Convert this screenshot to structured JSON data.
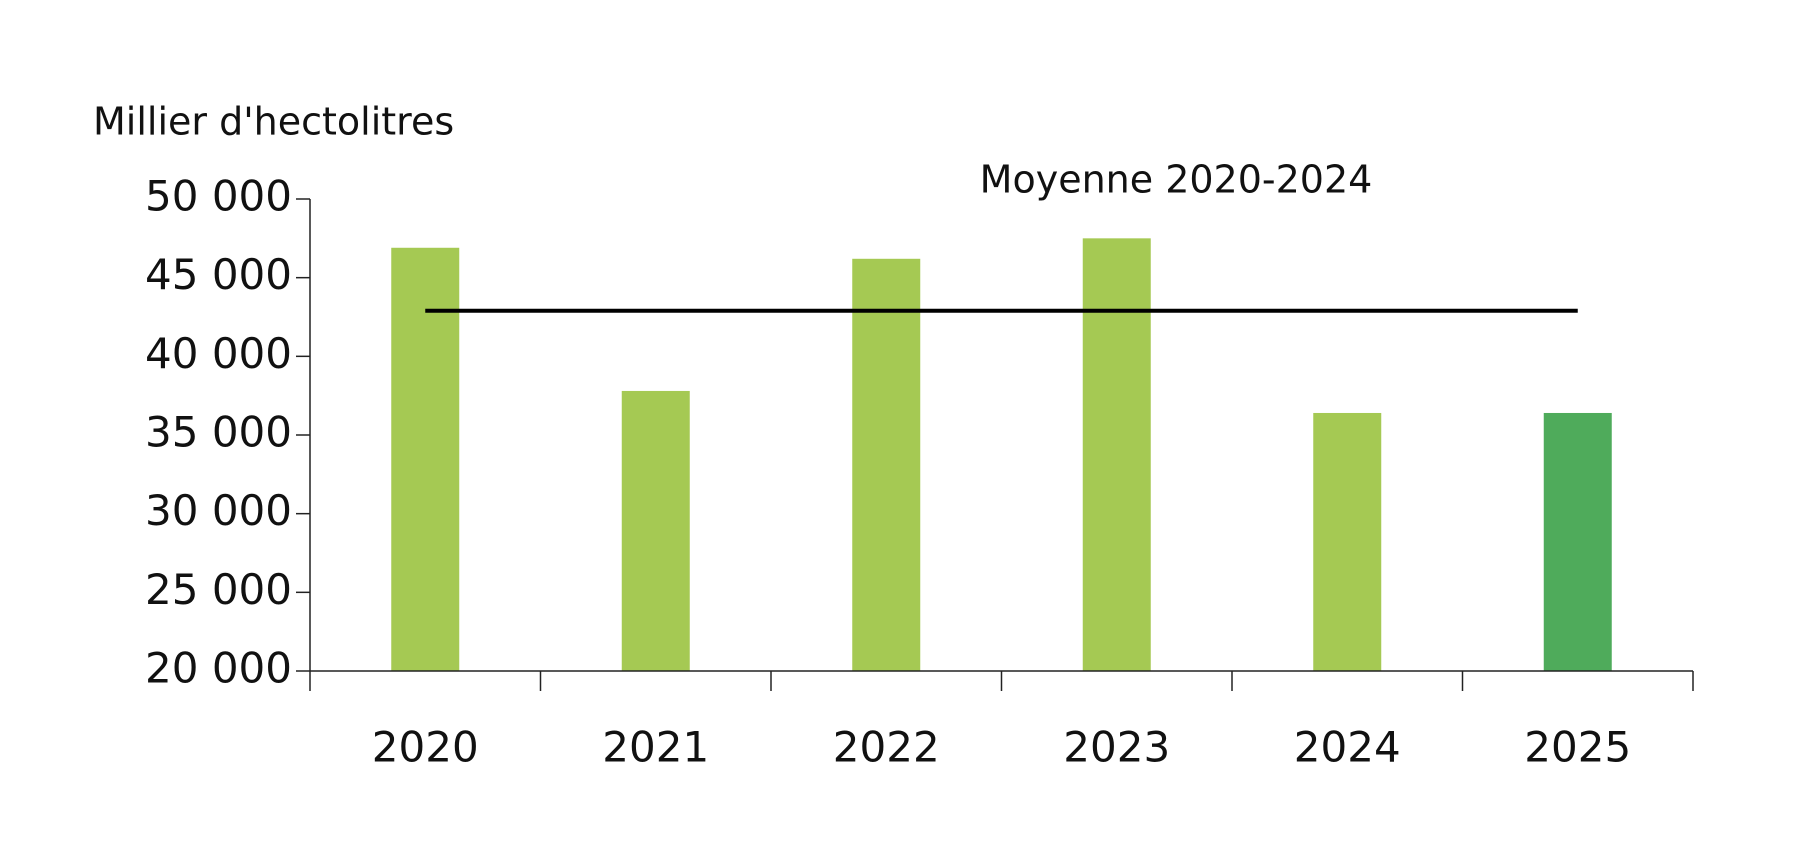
{
  "chart_data": {
    "type": "bar",
    "y_label": "Millier d'hectolitres",
    "categories": [
      "2020",
      "2021",
      "2022",
      "2023",
      "2024",
      "2025"
    ],
    "values": [
      46900,
      37800,
      46200,
      47500,
      36400,
      36400
    ],
    "colors": [
      "#a5c953",
      "#a5c953",
      "#a5c953",
      "#a5c953",
      "#a5c953",
      "#4fab5b"
    ],
    "average": {
      "name": "Moyenne 2020-2024",
      "value": 42900,
      "color": "#000000"
    },
    "ylim": [
      20000,
      50000
    ],
    "yticks": [
      {
        "value": 20000,
        "label": "20 000"
      },
      {
        "value": 25000,
        "label": "25 000"
      },
      {
        "value": 30000,
        "label": "30 000"
      },
      {
        "value": 35000,
        "label": "35 000"
      },
      {
        "value": 40000,
        "label": "40 000"
      },
      {
        "value": 45000,
        "label": "45 000"
      },
      {
        "value": 50000,
        "label": "50 000"
      }
    ],
    "grid": false
  }
}
